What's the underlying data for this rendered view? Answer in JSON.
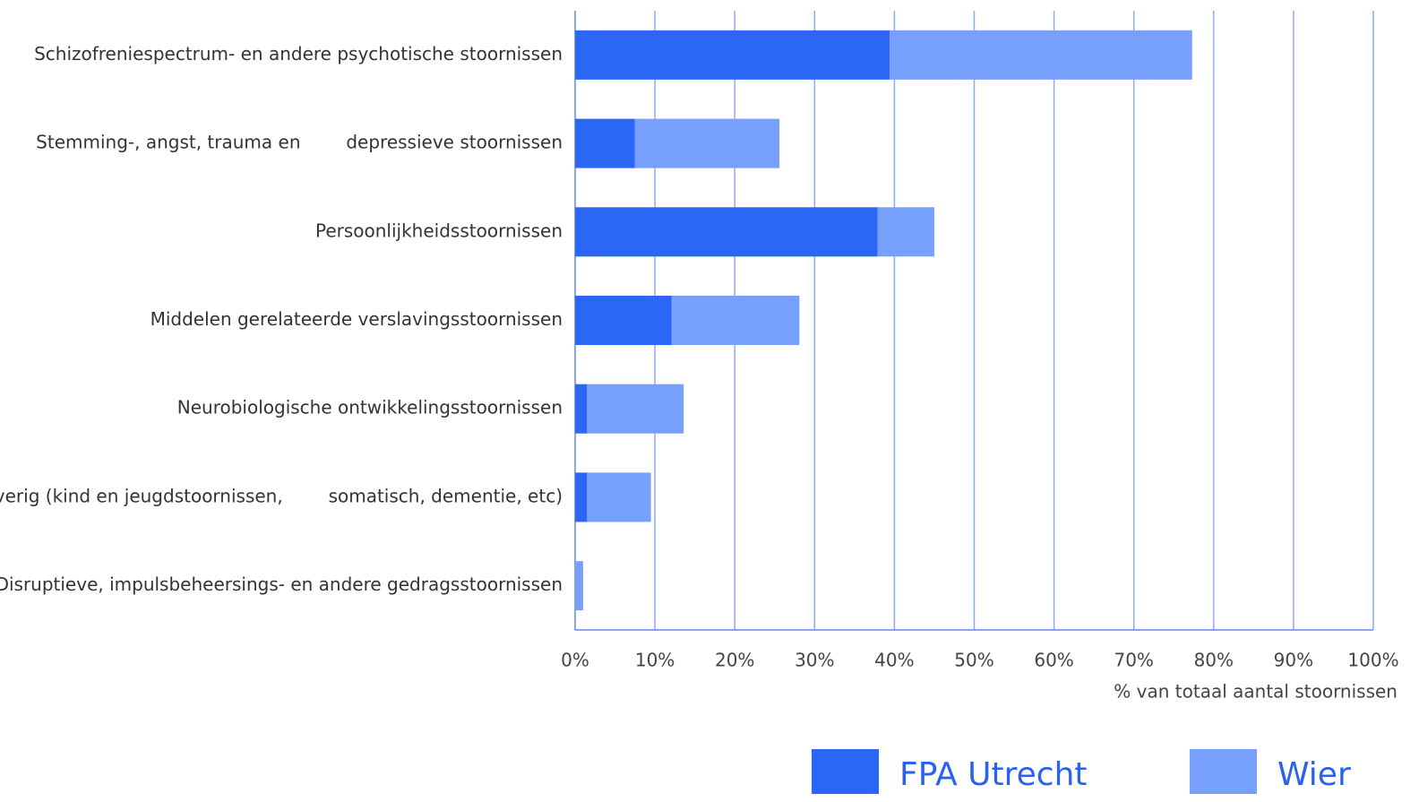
{
  "chart_data": {
    "type": "stacked-bar-horizontal",
    "categories": [
      "Schizofreniespectrum- en andere psychotische stoornissen",
      "Stemming-, angst, trauma en        depressieve stoornissen",
      "Persoonlijkheidsstoornissen",
      "Middelen gerelateerde verslavingsstoornissen",
      "Neurobiologische ontwikkelingsstoornissen",
      "Overig (kind en jeugdstoornissen,        somatisch, dementie, etc)",
      "Disruptieve, impulsbeheersings- en andere gedragsstoornissen"
    ],
    "series": [
      {
        "name": "FPA Utrecht",
        "color": "#2b66f5",
        "values": [
          39.4,
          7.5,
          37.9,
          12.1,
          1.5,
          1.5,
          0
        ]
      },
      {
        "name": "Wier",
        "color": "#77a0fc",
        "values": [
          37.9,
          18.1,
          7.1,
          16.0,
          12.1,
          8.0,
          1.0
        ]
      }
    ],
    "x_label": "% van totaal aantal stoornissen",
    "xlim": [
      0,
      100
    ],
    "xticks": [
      {
        "value": 0,
        "label": "0%"
      },
      {
        "value": 10,
        "label": "10%"
      },
      {
        "value": 20,
        "label": "20%"
      },
      {
        "value": 30,
        "label": "30%"
      },
      {
        "value": 40,
        "label": "40%"
      },
      {
        "value": 50,
        "label": "50%"
      },
      {
        "value": 60,
        "label": "60%"
      },
      {
        "value": 70,
        "label": "70%"
      },
      {
        "value": 80,
        "label": "80%"
      },
      {
        "value": 90,
        "label": "90%"
      },
      {
        "value": 100,
        "label": "100%"
      }
    ],
    "grid": true,
    "legend": "bottom-right"
  }
}
